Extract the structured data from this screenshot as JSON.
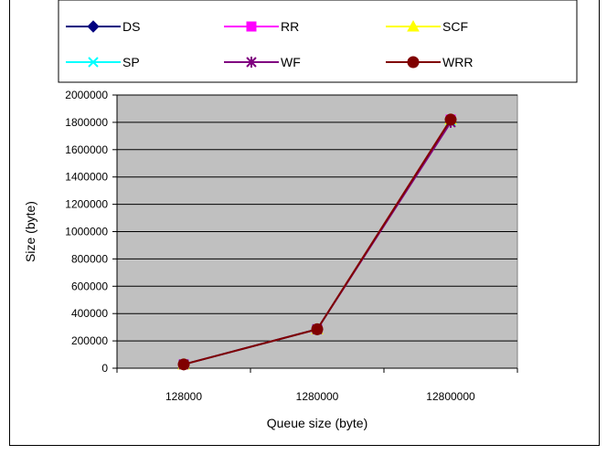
{
  "chart_data": {
    "type": "line",
    "categories": [
      "128000",
      "1280000",
      "12800000"
    ],
    "xlabel": "Queue size (byte)",
    "ylabel": "Size (byte)",
    "ylim": [
      0,
      2000000
    ],
    "yticks": [
      "0",
      "200000",
      "400000",
      "600000",
      "800000",
      "1000000",
      "1200000",
      "1400000",
      "1600000",
      "1800000",
      "2000000"
    ],
    "plot_background": "#c0c0c0",
    "grid": "horizontal",
    "legend_position": "top",
    "series": [
      {
        "name": "DS",
        "color": "#000080",
        "marker": "diamond",
        "values": [
          28000,
          285000,
          1820000
        ]
      },
      {
        "name": "RR",
        "color": "#ff00ff",
        "marker": "square",
        "values": [
          28000,
          285000,
          1820000
        ]
      },
      {
        "name": "SCF",
        "color": "#ffff00",
        "marker": "triangle",
        "values": [
          28000,
          285000,
          1820000
        ]
      },
      {
        "name": "SP",
        "color": "#00ffff",
        "marker": "x",
        "values": [
          28000,
          285000,
          1810000
        ]
      },
      {
        "name": "WF",
        "color": "#800080",
        "marker": "star",
        "values": [
          28000,
          285000,
          1800000
        ]
      },
      {
        "name": "WRR",
        "color": "#800000",
        "marker": "circle",
        "values": [
          28000,
          285000,
          1820000
        ]
      }
    ]
  }
}
